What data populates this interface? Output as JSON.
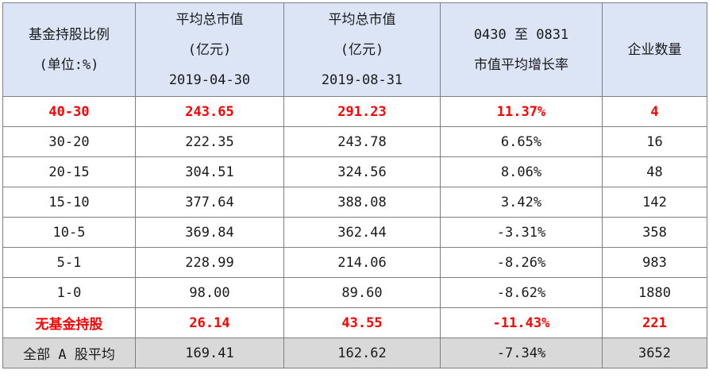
{
  "headers": [
    {
      "lines": [
        "基金持股比例",
        "(单位:%)"
      ]
    },
    {
      "lines": [
        "平均总市值",
        "(亿元)",
        "2019-04-30"
      ]
    },
    {
      "lines": [
        "平均总市值",
        "(亿元)",
        "2019-08-31"
      ]
    },
    {
      "lines": [
        "0430 至 0831",
        "市值平均增长率"
      ]
    },
    {
      "lines": [
        "企业数量"
      ]
    }
  ],
  "rows": [
    {
      "cells": [
        "40-30",
        "243.65",
        "291.23",
        "11.37%",
        "4"
      ],
      "highlight": true
    },
    {
      "cells": [
        "30-20",
        "222.35",
        "243.78",
        "6.65%",
        "16"
      ]
    },
    {
      "cells": [
        "20-15",
        "304.51",
        "324.56",
        "8.06%",
        "48"
      ]
    },
    {
      "cells": [
        "15-10",
        "377.64",
        "388.08",
        "3.42%",
        "142"
      ]
    },
    {
      "cells": [
        "10-5",
        "369.84",
        "362.44",
        "-3.31%",
        "358"
      ]
    },
    {
      "cells": [
        "5-1",
        "228.99",
        "214.06",
        "-8.26%",
        "983"
      ]
    },
    {
      "cells": [
        "1-0",
        "98.00",
        "89.60",
        "-8.62%",
        "1880"
      ]
    },
    {
      "cells": [
        "无基金持股",
        "26.14",
        "43.55",
        "-11.43%",
        "221"
      ],
      "highlight": true
    },
    {
      "cells": [
        "全部 A 股平均",
        "169.41",
        "162.62",
        "-7.34%",
        "3652"
      ],
      "average": true
    }
  ],
  "colors": {
    "header_bg": "#dbe5f5",
    "highlight_text": "#ff0000",
    "average_row_bg": "#d9d9d9",
    "border": "#7f7f7f"
  }
}
